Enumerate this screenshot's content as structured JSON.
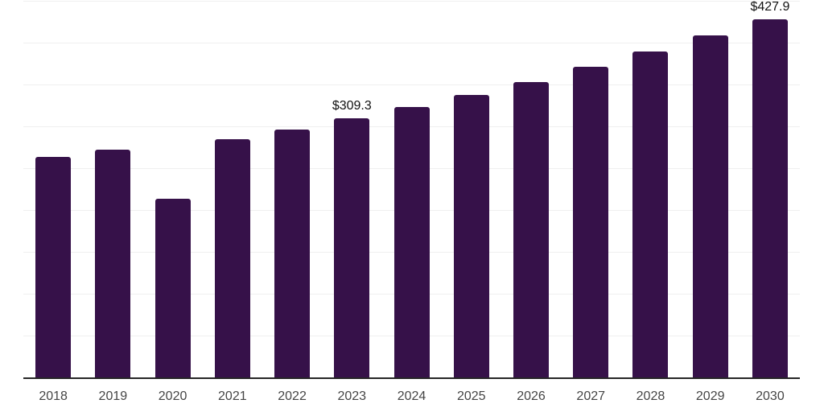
{
  "chart_data": {
    "type": "bar",
    "title": "",
    "xlabel": "",
    "ylabel": "",
    "categories": [
      "2018",
      "2019",
      "2020",
      "2021",
      "2022",
      "2023",
      "2024",
      "2025",
      "2026",
      "2027",
      "2028",
      "2029",
      "2030"
    ],
    "values": [
      263.9,
      272.5,
      213.0,
      284.9,
      296.4,
      309.3,
      323.4,
      337.9,
      353.3,
      371.2,
      389.6,
      408.6,
      427.9
    ],
    "data_labels": [
      null,
      null,
      null,
      null,
      null,
      "$309.3",
      null,
      null,
      null,
      null,
      null,
      null,
      "$427.9"
    ],
    "ylim": [
      0,
      450
    ],
    "gridline_step": 50,
    "grid": "horizontal",
    "legend": "none",
    "y_tick_labels_shown": false,
    "colors": {
      "bar": "#361149",
      "axis_line": "#262626",
      "gridline": "#f0f0f0",
      "tick_label": "#454545",
      "data_label": "#111111",
      "background": "#ffffff"
    }
  }
}
